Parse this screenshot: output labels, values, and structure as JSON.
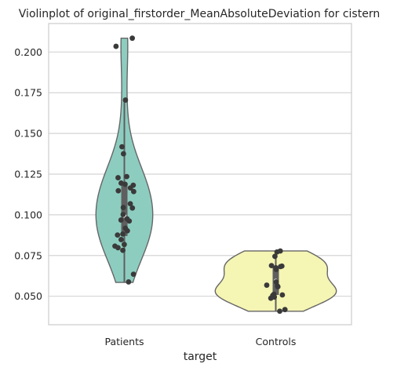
{
  "chart_data": {
    "type": "violin",
    "title": "Violinplot of original_firstorder_MeanAbsoluteDeviation for cistern",
    "xlabel": "target",
    "ylabel": "",
    "categories": [
      "Patients",
      "Controls"
    ],
    "ylim": [
      0.0325,
      0.2175
    ],
    "yticks": [
      0.05,
      0.075,
      0.1,
      0.125,
      0.15,
      0.175,
      0.2
    ],
    "ytick_labels": [
      "0.050",
      "0.075",
      "0.100",
      "0.125",
      "0.150",
      "0.175",
      "0.200"
    ],
    "grid": "horizontal",
    "colors": {
      "Patients": "#8dcdc0",
      "Controls": "#f5f5b4",
      "points": "#3a3a3a",
      "box": "#5f5f5f",
      "outline": "#666666",
      "grid": "#d4d4d4"
    },
    "series": [
      {
        "category": "Patients",
        "points": [
          0.2085,
          0.2035,
          0.1705,
          0.1418,
          0.1375,
          0.1235,
          0.1228,
          0.1195,
          0.1188,
          0.1182,
          0.1165,
          0.1148,
          0.1143,
          0.1068,
          0.1045,
          0.1042,
          0.1002,
          0.0975,
          0.0968,
          0.0962,
          0.0918,
          0.0902,
          0.0882,
          0.0876,
          0.0848,
          0.0818,
          0.0808,
          0.0798,
          0.0782,
          0.0635,
          0.0588
        ],
        "box": {
          "q1": 0.087,
          "median": 0.0995,
          "q3": 0.1195,
          "whisker_low": 0.0585,
          "whisker_high": 0.1705
        },
        "violin_range": [
          0.0585,
          0.2085
        ]
      },
      {
        "category": "Controls",
        "points": [
          0.0778,
          0.0772,
          0.0745,
          0.0688,
          0.0685,
          0.0682,
          0.0675,
          0.0665,
          0.0588,
          0.0568,
          0.0562,
          0.0558,
          0.0512,
          0.0508,
          0.0505,
          0.0495,
          0.0488,
          0.0418,
          0.0408
        ],
        "box": {
          "q1": 0.0508,
          "median": 0.0595,
          "q3": 0.0678,
          "whisker_low": 0.0408,
          "whisker_high": 0.0778
        },
        "violin_range": [
          0.0408,
          0.0778
        ]
      }
    ]
  }
}
